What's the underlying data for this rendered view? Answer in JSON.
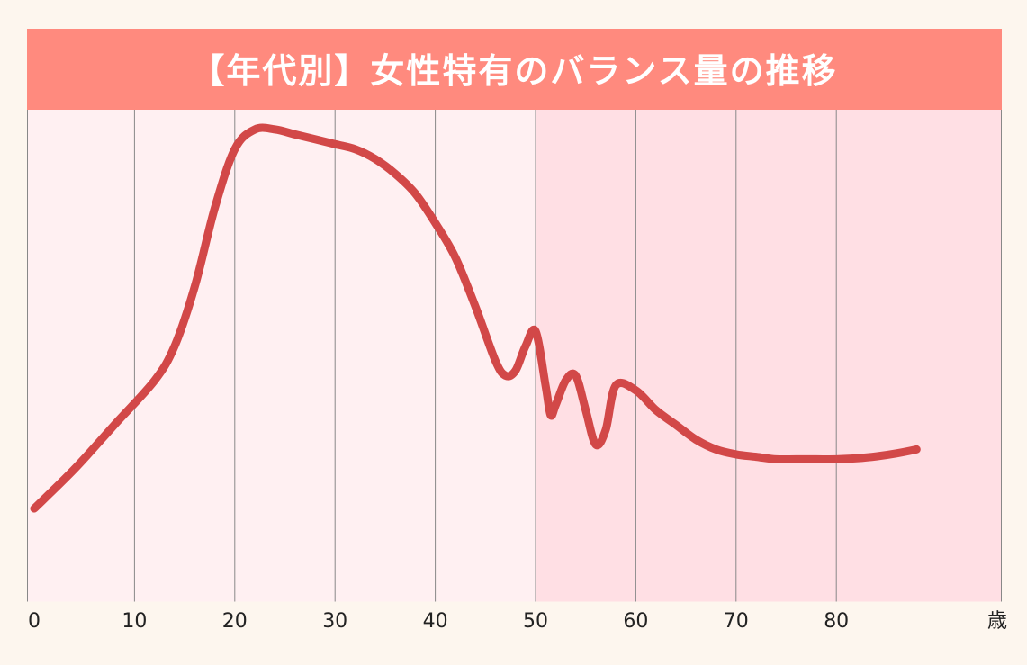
{
  "colors": {
    "page_background": "#fdf6ee",
    "title_background": "#ff8a7e",
    "title_text": "#ffffff",
    "plot_light": "#fff0f2",
    "plot_dark": "#ffdfe4",
    "grid": "#888888",
    "line": "#d24848"
  },
  "chart_data": {
    "type": "line",
    "title": "【年代別】女性特有のバランス量の推移",
    "xlabel": "",
    "ylabel": "",
    "x_unit": "歳",
    "xlim": [
      0,
      88
    ],
    "ylim": [
      0,
      100
    ],
    "grid": "vertical",
    "shaded_from_age": 50,
    "ticks": [
      {
        "value": 0,
        "label": "0"
      },
      {
        "value": 10,
        "label": "10"
      },
      {
        "value": 20,
        "label": "20"
      },
      {
        "value": 30,
        "label": "30"
      },
      {
        "value": 40,
        "label": "40"
      },
      {
        "value": 50,
        "label": "50"
      },
      {
        "value": 60,
        "label": "60"
      },
      {
        "value": 70,
        "label": "70"
      },
      {
        "value": 80,
        "label": "80"
      }
    ],
    "series": [
      {
        "name": "",
        "x": [
          0,
          4,
          8,
          12,
          14,
          16,
          18,
          20,
          22,
          24,
          26,
          28,
          30,
          32,
          34,
          36,
          38,
          40,
          42,
          44,
          46,
          47,
          48,
          49,
          50,
          51,
          51.5,
          52,
          53,
          54,
          55,
          56,
          57,
          58,
          60,
          62,
          64,
          66,
          68,
          70,
          72,
          74,
          76,
          78,
          80,
          82,
          84,
          86,
          88
        ],
        "y": [
          19,
          27,
          36,
          45,
          52,
          64,
          80,
          92,
          96,
          96,
          95,
          94,
          93,
          92,
          90,
          87,
          83,
          77,
          70,
          60,
          49,
          46,
          47,
          52,
          55,
          44,
          38,
          40,
          45,
          46,
          39,
          32,
          35,
          44,
          43,
          39,
          36,
          33,
          31,
          30,
          29.5,
          29,
          29,
          29,
          29,
          29.2,
          29.6,
          30.2,
          31
        ]
      }
    ]
  }
}
